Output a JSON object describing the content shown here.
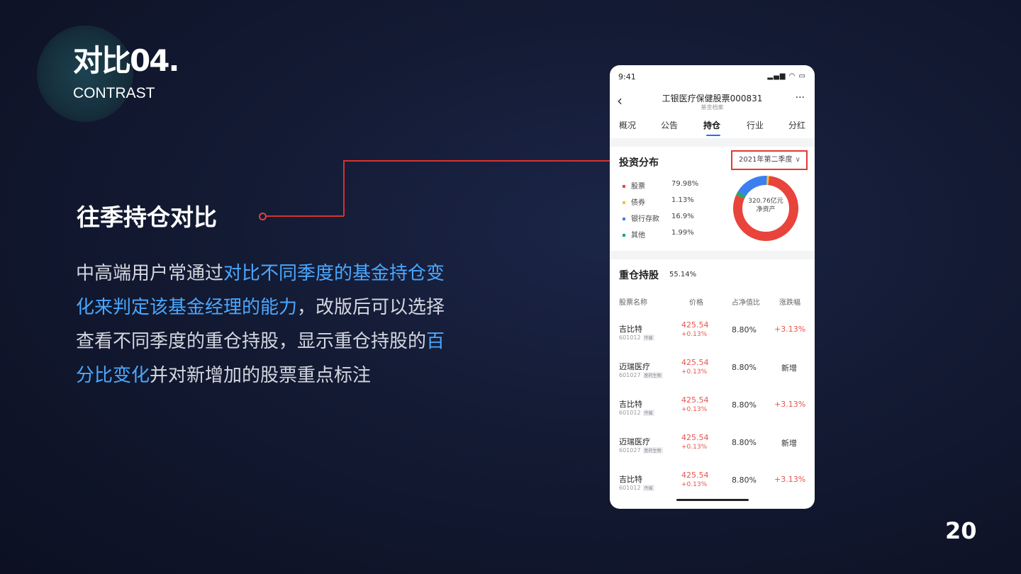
{
  "slide": {
    "title": "对比04.",
    "subtitle": "CONTRAST",
    "section_title": "往季持仓对比",
    "paragraph": [
      {
        "text": "中高端用户常通过",
        "highlight": false
      },
      {
        "text": "对比不同季度的基金持仓变化来判定该基金经理的能力",
        "highlight": true
      },
      {
        "text": "，改版后可以选择查看不同季度的重仓持股，显示重仓持股的",
        "highlight": false
      },
      {
        "text": "百分比变化",
        "highlight": true
      },
      {
        "text": "并对新增加的股票重点标注",
        "highlight": false
      }
    ],
    "page_number": "20",
    "highlight_color": "#4aa8ff",
    "accent_color": "#d9322c"
  },
  "phone": {
    "status_time": "9:41",
    "status_icons": "▂▄▆ ◠ ▭",
    "nav": {
      "back_icon": "chevron-left-icon",
      "title": "工银医疗保健股票000831",
      "subtitle": "基金档案",
      "more": "···"
    },
    "tabs": [
      {
        "label": "概况",
        "active": false
      },
      {
        "label": "公告",
        "active": false
      },
      {
        "label": "持仓",
        "active": true
      },
      {
        "label": "行业",
        "active": false
      },
      {
        "label": "分红",
        "active": false
      }
    ],
    "distribution": {
      "title": "投资分布",
      "quarter_select": "2021年第二季度",
      "legend": [
        {
          "label": "股票",
          "value": "79.98%",
          "color": "#e8443c",
          "pct": 79.98
        },
        {
          "label": "债券",
          "value": "1.13%",
          "color": "#f5c12e",
          "pct": 1.13
        },
        {
          "label": "银行存款",
          "value": "16.9%",
          "color": "#3c7ff0",
          "pct": 16.9
        },
        {
          "label": "其他",
          "value": "1.99%",
          "color": "#27a36a",
          "pct": 1.99
        }
      ],
      "center_value": "320.76亿元",
      "center_label": "净资产"
    },
    "holdings": {
      "title": "重仓持股",
      "percent": "55.14%",
      "headers": [
        "股票名称",
        "价格",
        "占净值比",
        "涨跌幅"
      ],
      "rows": [
        {
          "name": "吉比特",
          "code": "601012",
          "tag": "传媒",
          "price": "425.54",
          "price_change": "+0.13%",
          "ratio": "8.80%",
          "change": "+3.13%",
          "is_new": false
        },
        {
          "name": "迈瑞医疗",
          "code": "601027",
          "tag": "医药生物",
          "price": "425.54",
          "price_change": "+0.13%",
          "ratio": "8.80%",
          "change": "新增",
          "is_new": true
        },
        {
          "name": "吉比特",
          "code": "601012",
          "tag": "传媒",
          "price": "425.54",
          "price_change": "+0.13%",
          "ratio": "8.80%",
          "change": "+3.13%",
          "is_new": false
        },
        {
          "name": "迈瑞医疗",
          "code": "601027",
          "tag": "医药生物",
          "price": "425.54",
          "price_change": "+0.13%",
          "ratio": "8.80%",
          "change": "新增",
          "is_new": true
        },
        {
          "name": "吉比特",
          "code": "601012",
          "tag": "传媒",
          "price": "425.54",
          "price_change": "+0.13%",
          "ratio": "8.80%",
          "change": "+3.13%",
          "is_new": false
        }
      ]
    }
  }
}
